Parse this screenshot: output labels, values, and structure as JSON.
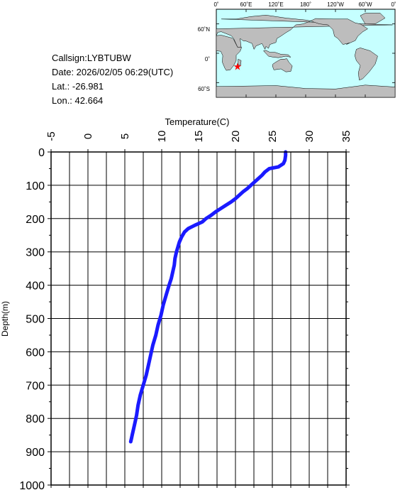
{
  "info": {
    "callsign": "Callsign:LYBTUBW",
    "date": "Date:  2026/02/05 06:29(UTC)",
    "lat": "Lat.:  -26.981",
    "lon": "Lon.:   42.664"
  },
  "map": {
    "lon_ticks": [
      "0˚",
      "60˚E",
      "120˚E",
      "180˚",
      "120˚W",
      "60˚W",
      "0˚"
    ],
    "lat_ticks": [
      "60˚N",
      "0˚",
      "60˚S"
    ],
    "marker": {
      "lon": 42.664,
      "lat": -26.981
    },
    "colors": {
      "ocean": "#c6ffff",
      "land": "#bdbdbd",
      "marker": "#ff0000"
    }
  },
  "chart_data": {
    "type": "line",
    "title": "",
    "xlabel": "Temperature(C)",
    "ylabel": "Depth(m)",
    "xlim": [
      -5,
      35
    ],
    "ylim": [
      0,
      1000
    ],
    "x_ticks": [
      "-5",
      "0",
      "5",
      "10",
      "15",
      "20",
      "25",
      "30",
      "35"
    ],
    "y_ticks": [
      "0",
      "100",
      "200",
      "300",
      "400",
      "500",
      "600",
      "700",
      "800",
      "900",
      "1000"
    ],
    "y_inverted": true,
    "axis_position": "top",
    "grid": true,
    "series": [
      {
        "color": "#1a1aff",
        "x": [
          26.8,
          26.8,
          26.7,
          26.5,
          25.8,
          24.6,
          24.0,
          23.6,
          23.1,
          22.6,
          22.1,
          21.6,
          21.0,
          20.5,
          20.0,
          19.4,
          18.7,
          18.0,
          17.3,
          16.7,
          16.0,
          15.5,
          14.5,
          13.6,
          13.1,
          12.7,
          12.4,
          12.2,
          12.0,
          11.8,
          11.7,
          11.5,
          11.3,
          11.0,
          10.6,
          10.2,
          9.9,
          9.5,
          9.2,
          8.8,
          8.5,
          8.2,
          7.9,
          7.5,
          7.1,
          6.8,
          6.6,
          6.4,
          6.2,
          6.0,
          5.9,
          5.8
        ],
        "y": [
          0,
          10,
          25,
          35,
          45,
          50,
          60,
          70,
          80,
          90,
          100,
          110,
          120,
          130,
          140,
          150,
          160,
          170,
          180,
          190,
          200,
          210,
          220,
          230,
          240,
          255,
          270,
          285,
          300,
          320,
          340,
          360,
          380,
          400,
          430,
          460,
          490,
          520,
          550,
          580,
          610,
          640,
          670,
          700,
          730,
          760,
          790,
          810,
          830,
          850,
          860,
          870
        ]
      }
    ]
  }
}
